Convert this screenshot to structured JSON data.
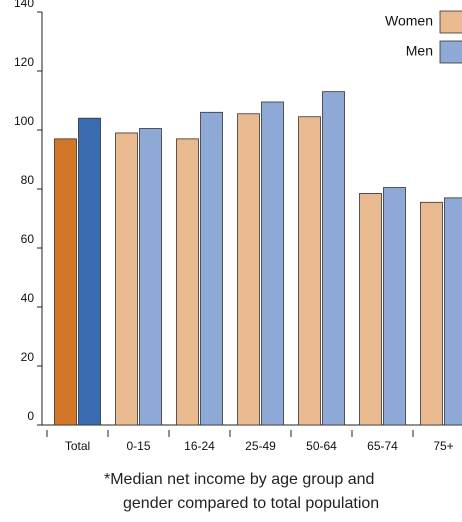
{
  "chart_data": {
    "type": "bar",
    "categories": [
      "Total",
      "0-15",
      "16-24",
      "25-49",
      "50-64",
      "65-74",
      "75+"
    ],
    "series": [
      {
        "name": "Women",
        "color": "#e9b98f",
        "total_color": "#d2762a",
        "values": [
          97,
          99,
          97,
          105.5,
          104.5,
          78.5,
          75.5
        ]
      },
      {
        "name": "Men",
        "color": "#8ea9d6",
        "total_color": "#3a6ab0",
        "values": [
          104,
          100.5,
          106,
          109.5,
          113,
          80.5,
          77
        ]
      }
    ],
    "ylim": [
      0,
      140
    ],
    "yticks": [
      0,
      20,
      40,
      60,
      80,
      100,
      120,
      140
    ],
    "legend": "top-right",
    "footnote": [
      "*Median net income by age group and",
      "gender compared to total population"
    ]
  }
}
